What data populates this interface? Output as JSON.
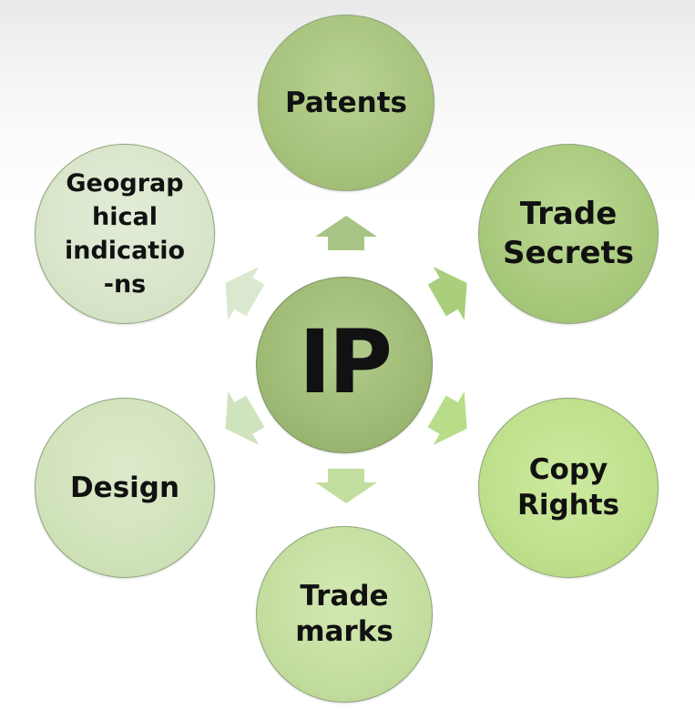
{
  "center": {
    "label": "IP",
    "color": "#a0bc76"
  },
  "nodes": {
    "patents": {
      "label": "Patents",
      "color": "#a7c37c"
    },
    "trade_secrets": {
      "label": "Trade\nSecrets",
      "color": "#a8c97c"
    },
    "copy_rights": {
      "label": "Copy\nRights",
      "color": "#bfe08c"
    },
    "trade_marks": {
      "label": "Trade\nmarks",
      "color": "#c4de9f"
    },
    "design": {
      "label": "Design",
      "color": "#d1e3bb"
    },
    "geographical_indications": {
      "label": "Geograp\nhical\nindicatio\n-ns",
      "color": "#d8e5ca"
    }
  },
  "arrow_colors": {
    "up": "#a8c585",
    "upper_right": "#a9cf7c",
    "lower_right": "#b7dd88",
    "down": "#c2de9e",
    "lower_left": "#cfe3bd",
    "upper_left": "#dbe8d0"
  }
}
